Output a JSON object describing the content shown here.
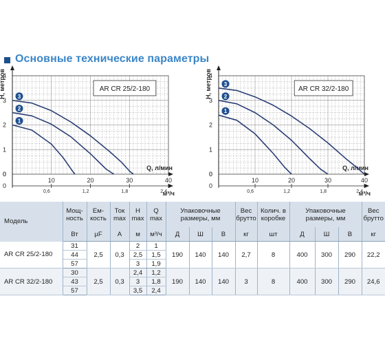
{
  "section_title": "Основные технические параметры",
  "chart_data": [
    {
      "type": "line",
      "title": "AR CR 25/2-180",
      "ylabel": "H, метров",
      "xlabel": "Q, л/мин",
      "x2label": "м³/ч",
      "xlim": [
        0,
        40
      ],
      "ylim": [
        0,
        4
      ],
      "xticks": [
        "0",
        "10",
        "20",
        "30",
        "40"
      ],
      "yticks": [
        "0",
        "1",
        "2",
        "3",
        "4"
      ],
      "x2ticks": [
        "0",
        "0,6",
        "1,2",
        "1,8",
        "2,4"
      ],
      "grid": true,
      "series": [
        {
          "name": "1",
          "x": [
            0,
            5,
            10,
            13,
            15,
            16
          ],
          "y": [
            2,
            1.79,
            1.22,
            0.67,
            0.22,
            0
          ]
        },
        {
          "name": "2",
          "x": [
            0,
            5,
            10,
            15,
            20,
            24,
            26
          ],
          "y": [
            2.5,
            2.37,
            2.03,
            1.52,
            0.83,
            0.21,
            0
          ]
        },
        {
          "name": "3",
          "x": [
            0,
            5,
            10,
            15,
            20,
            25,
            28,
            30,
            31
          ],
          "y": [
            3,
            2.89,
            2.58,
            2.12,
            1.56,
            0.91,
            0.48,
            0.13,
            0
          ]
        }
      ]
    },
    {
      "type": "line",
      "title": "AR CR 32/2-180",
      "ylabel": "H, метров",
      "xlabel": "Q, л/мин",
      "x2label": "м³/ч",
      "xlim": [
        0,
        40
      ],
      "ylim": [
        0,
        4
      ],
      "xticks": [
        "0",
        "10",
        "20",
        "30",
        "40"
      ],
      "yticks": [
        "0",
        "1",
        "2",
        "3",
        "4"
      ],
      "x2ticks": [
        "0",
        "0,6",
        "1,2",
        "1,8",
        "2,4"
      ],
      "grid": true,
      "series": [
        {
          "name": "1",
          "x": [
            0,
            5,
            10,
            15,
            18,
            20
          ],
          "y": [
            2.4,
            2.19,
            1.64,
            0.84,
            0.3,
            0
          ]
        },
        {
          "name": "2",
          "x": [
            0,
            5,
            10,
            15,
            20,
            25,
            28,
            30
          ],
          "y": [
            3,
            2.86,
            2.5,
            2.0,
            1.38,
            0.63,
            0.2,
            0
          ]
        },
        {
          "name": "3",
          "x": [
            0,
            5,
            10,
            15,
            20,
            25,
            30,
            35,
            38,
            40
          ],
          "y": [
            3.5,
            3.4,
            3.14,
            2.8,
            2.36,
            1.85,
            1.27,
            0.62,
            0.26,
            0
          ]
        }
      ]
    }
  ],
  "table": {
    "h": {
      "model": "Модель",
      "power": "Мощ-\nность",
      "cap": "Ем-\nкость",
      "cur": "Ток\nmax",
      "hmax": "H max",
      "qmax": "Q max",
      "pack": "Упаковочные\nразмеры, мм",
      "gross": "Вес\nбрутто",
      "qty": "Колич. в\nкоробке",
      "pack2": "Упаковочные\nразмеры, мм",
      "gross2": "Вес\nбрутто"
    },
    "u": {
      "power": "Вт",
      "cap": "µF",
      "cur": "A",
      "hmax": "м",
      "qmax": "м³/ч",
      "d": "Д",
      "w": "Ш",
      "h": "В",
      "gross": "кг",
      "qty": "шт",
      "d2": "Д",
      "w2": "Ш",
      "h2": "В",
      "gross2": "кг"
    },
    "r1": {
      "model": "AR CR 25/2-180",
      "power": [
        "31",
        "44",
        "57"
      ],
      "cap": "2,5",
      "cur": "0,3",
      "hmax": [
        "2",
        "2,5",
        "3"
      ],
      "qmax": [
        "1",
        "1,5",
        "1,9"
      ],
      "d": "190",
      "w": "140",
      "h": "140",
      "gross": "2,7",
      "qty": "8",
      "d2": "400",
      "w2": "300",
      "h2": "290",
      "gross2": "22,2"
    },
    "r2": {
      "model": "AR CR 32/2-180",
      "power": [
        "30",
        "43",
        "57"
      ],
      "cap": "2,5",
      "cur": "0,3",
      "hmax": [
        "2,4",
        "3",
        "3,5"
      ],
      "qmax": [
        "1,2",
        "1,8",
        "2,4"
      ],
      "d": "190",
      "w": "140",
      "h": "140",
      "gross": "3",
      "qty": "8",
      "d2": "400",
      "w2": "300",
      "h2": "290",
      "gross2": "24,6"
    }
  }
}
